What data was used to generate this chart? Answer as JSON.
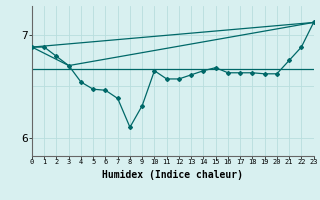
{
  "xlabel": "Humidex (Indice chaleur)",
  "background_color": "#d8f0f0",
  "grid_color": "#b8dede",
  "line_color": "#006868",
  "x_values": [
    0,
    1,
    2,
    3,
    4,
    5,
    6,
    7,
    8,
    9,
    10,
    11,
    12,
    13,
    14,
    15,
    16,
    17,
    18,
    19,
    20,
    21,
    22,
    23
  ],
  "series1": [
    6.88,
    6.88,
    6.79,
    6.7,
    6.54,
    6.47,
    6.46,
    6.38,
    6.1,
    6.31,
    6.65,
    6.57,
    6.57,
    6.61,
    6.65,
    6.68,
    6.63,
    6.63,
    6.63,
    6.62,
    6.62,
    6.75,
    6.88,
    7.12
  ],
  "line1_x": [
    0,
    23
  ],
  "line1_y": [
    6.88,
    7.12
  ],
  "line2_x": [
    0,
    3,
    23
  ],
  "line2_y": [
    6.88,
    6.7,
    7.12
  ],
  "line3_x": [
    0,
    23
  ],
  "line3_y": [
    6.67,
    6.67
  ],
  "ylim": [
    5.82,
    7.28
  ],
  "xlim": [
    0,
    23
  ],
  "yticks": [
    6,
    7
  ],
  "xtick_labels": [
    "0",
    "1",
    "2",
    "3",
    "4",
    "5",
    "6",
    "7",
    "8",
    "9",
    "10",
    "11",
    "12",
    "13",
    "14",
    "15",
    "16",
    "17",
    "18",
    "19",
    "20",
    "21",
    "22",
    "23"
  ]
}
